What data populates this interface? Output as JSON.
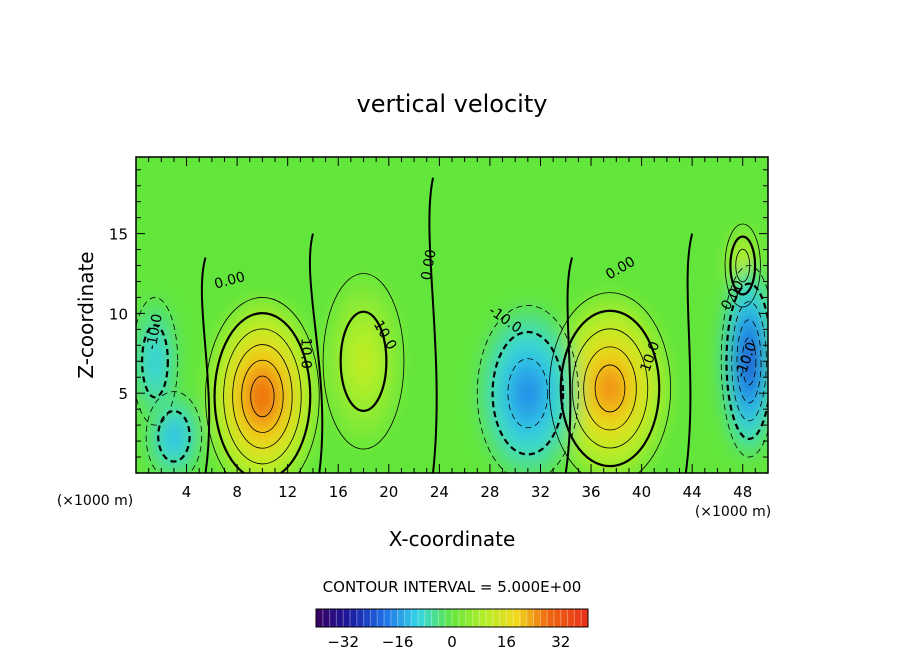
{
  "chart_data": {
    "type": "heatmap",
    "title": "vertical velocity",
    "xlabel": "X-coordinate",
    "ylabel": "Z-coordinate",
    "x_unit": "(×1000 m)",
    "y_unit": "(×1000 m)",
    "xlim": [
      0,
      50
    ],
    "ylim": [
      0,
      19.8
    ],
    "x_ticks": [
      "4",
      "8",
      "12",
      "16",
      "20",
      "24",
      "28",
      "32",
      "36",
      "40",
      "44",
      "48"
    ],
    "y_ticks": [
      "5",
      "10",
      "15"
    ],
    "contour_interval_label": "CONTOUR INTERVAL = 5.000E+00",
    "contour_labels": [
      "0.00",
      "0.00",
      "0.00",
      "0.00",
      "10.0",
      "10.0",
      "10.0",
      "-10.0",
      "-10.0",
      "-10.0"
    ],
    "colorbar": {
      "min": -40,
      "max": 40,
      "ticks": [
        "-32",
        "-16",
        "0",
        "16",
        "32"
      ]
    },
    "features": [
      {
        "kind": "updraft",
        "x": 10,
        "z": 4.8,
        "peak": 30
      },
      {
        "kind": "updraft",
        "x": 37.5,
        "z": 5.3,
        "peak": 26
      },
      {
        "kind": "updraft",
        "x": 48,
        "z": 13,
        "peak": 15
      },
      {
        "kind": "updraft",
        "x": 18,
        "z": 7,
        "peak": 12
      },
      {
        "kind": "downdraft",
        "x": 3,
        "z": 2.3,
        "peak": -14
      },
      {
        "kind": "downdraft",
        "x": 1.5,
        "z": 7,
        "peak": -12
      },
      {
        "kind": "downdraft",
        "x": 31,
        "z": 5,
        "peak": -18
      },
      {
        "kind": "downdraft",
        "x": 48.5,
        "z": 7,
        "peak": -26
      }
    ]
  }
}
